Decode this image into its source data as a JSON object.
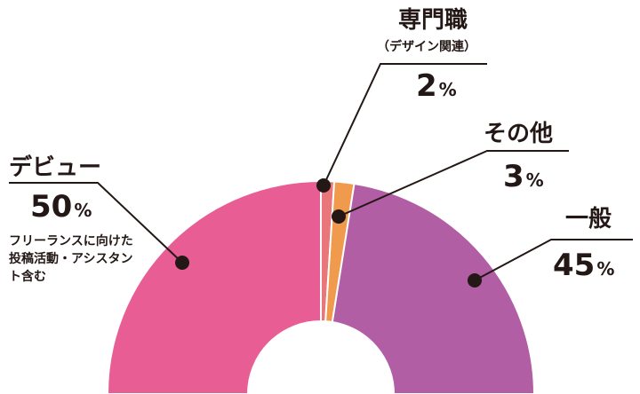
{
  "chart_data": {
    "type": "pie",
    "shape": "semicircle-donut",
    "slices": [
      {
        "label": "デビュー",
        "value": 50,
        "unit": "%",
        "note": "フリーランスに向けた投稿活動・アシスタント含む",
        "color": "#e85d93"
      },
      {
        "label": "専門職",
        "sublabel": "（デザイン関連）",
        "value": 2,
        "unit": "%",
        "color": "#e9767a"
      },
      {
        "label": "その他",
        "value": 3,
        "unit": "%",
        "color": "#f09a4e"
      },
      {
        "label": "一般",
        "value": 45,
        "unit": "%",
        "color": "#b15ea4"
      }
    ],
    "leader_color": "#231815"
  }
}
